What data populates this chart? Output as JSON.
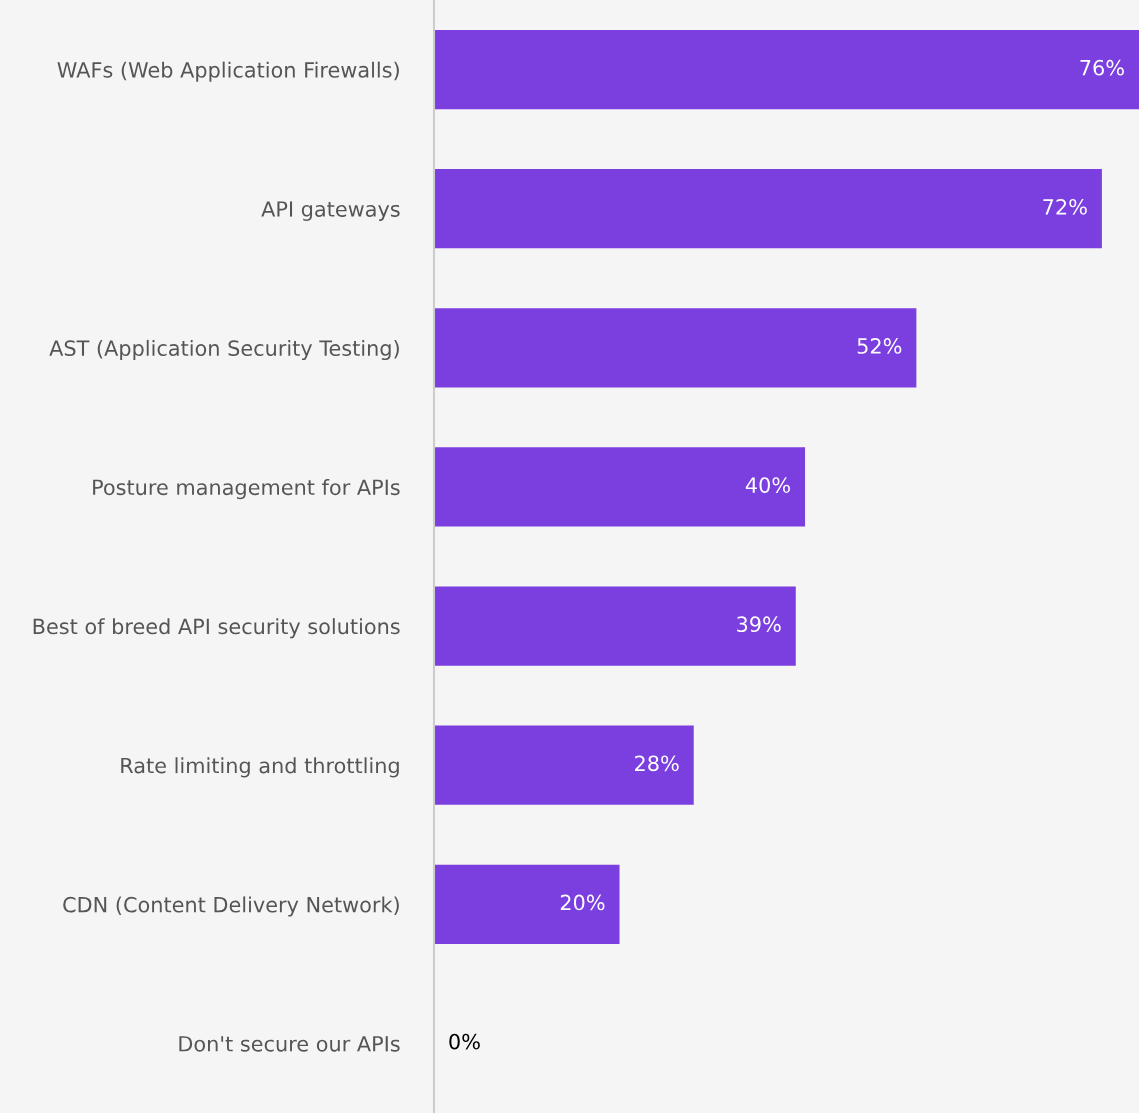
{
  "chart_data": {
    "type": "bar",
    "orientation": "horizontal",
    "categories": [
      "WAFs (Web Application Firewalls)",
      "API gateways",
      "AST (Application Security Testing)",
      "Posture management for APIs",
      "Best of breed API security solutions",
      "Rate limiting and throttling",
      "CDN (Content Delivery Network)",
      "Don't secure our APIs"
    ],
    "values": [
      76,
      72,
      52,
      40,
      39,
      28,
      20,
      0
    ],
    "value_labels": [
      "76%",
      "72%",
      "52%",
      "40%",
      "39%",
      "28%",
      "20%",
      "0%"
    ],
    "color": "#7b3fe0",
    "grid": false,
    "legend": false
  }
}
